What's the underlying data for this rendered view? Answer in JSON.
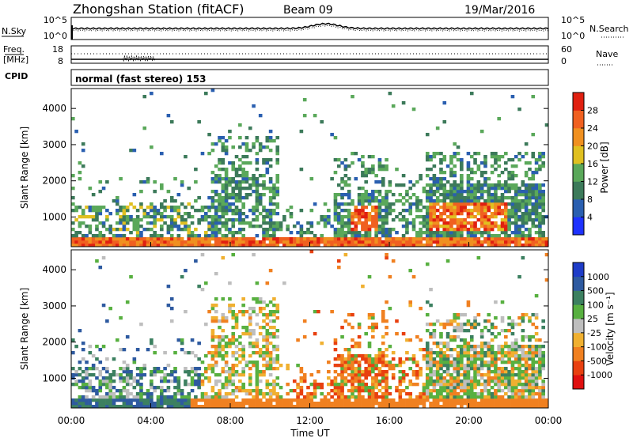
{
  "header": {
    "station": "Zhongshan Station (fitACF)",
    "beam": "Beam 09",
    "date": "19/Mar/2016"
  },
  "nsky_panel": {
    "left_label": "N.Sky",
    "left_ticks": [
      "10^5",
      "10^0"
    ],
    "right_label": "N.Search",
    "right_ticks": [
      "10^5",
      "10^0"
    ]
  },
  "freq_panel": {
    "left_label_1": "Freq.",
    "left_label_2": "[MHz]",
    "left_ticks": [
      "18",
      "8"
    ],
    "right_label": "Nave",
    "right_ticks": [
      "60",
      "0"
    ],
    "cpid_label": "CPID"
  },
  "cpid_text": "normal (fast stereo) 153",
  "chart_data": [
    {
      "type": "heatmap",
      "name": "Power",
      "ylabel": "Slant Range [km]",
      "xlabel": "Time UT",
      "x_ticks": [
        "00:00",
        "04:00",
        "08:00",
        "12:00",
        "16:00",
        "20:00",
        "00:00"
      ],
      "xlim_hours": [
        0,
        24
      ],
      "y_ticks": [
        "1000",
        "2000",
        "3000",
        "4000"
      ],
      "ylim": [
        180,
        4550
      ],
      "colorbar_label": "Power [dB]",
      "colorbar_ticks": [
        "4",
        "8",
        "12",
        "16",
        "20",
        "24",
        "28"
      ],
      "colorbar_range": [
        0,
        32
      ],
      "colorbar_colors": [
        "#1e32ff",
        "#2a5fb0",
        "#3c7a5a",
        "#5aa85a",
        "#e0c020",
        "#f09020",
        "#f06020",
        "#e02010"
      ]
    },
    {
      "type": "heatmap",
      "name": "Velocity",
      "ylabel": "Slant Range [km]",
      "xlabel": "Time UT",
      "x_ticks": [
        "00:00",
        "04:00",
        "08:00",
        "12:00",
        "16:00",
        "20:00",
        "00:00"
      ],
      "xlim_hours": [
        0,
        24
      ],
      "y_ticks": [
        "1000",
        "2000",
        "3000",
        "4000"
      ],
      "ylim": [
        180,
        4550
      ],
      "colorbar_label": "Velocity [m s⁻¹]",
      "colorbar_ticks": [
        "1000",
        "500",
        "100",
        "25",
        "-25",
        "-100",
        "-500",
        "-1000"
      ],
      "colorbar_colors": [
        "#1e3cc8",
        "#2e5aa0",
        "#3c8060",
        "#58b040",
        "#bebebe",
        "#f0b030",
        "#f08020",
        "#e84010",
        "#e01010"
      ]
    }
  ],
  "x_axis": {
    "title": "Time UT",
    "ticks": [
      "00:00",
      "04:00",
      "08:00",
      "12:00",
      "16:00",
      "20:00",
      "00:00"
    ]
  }
}
